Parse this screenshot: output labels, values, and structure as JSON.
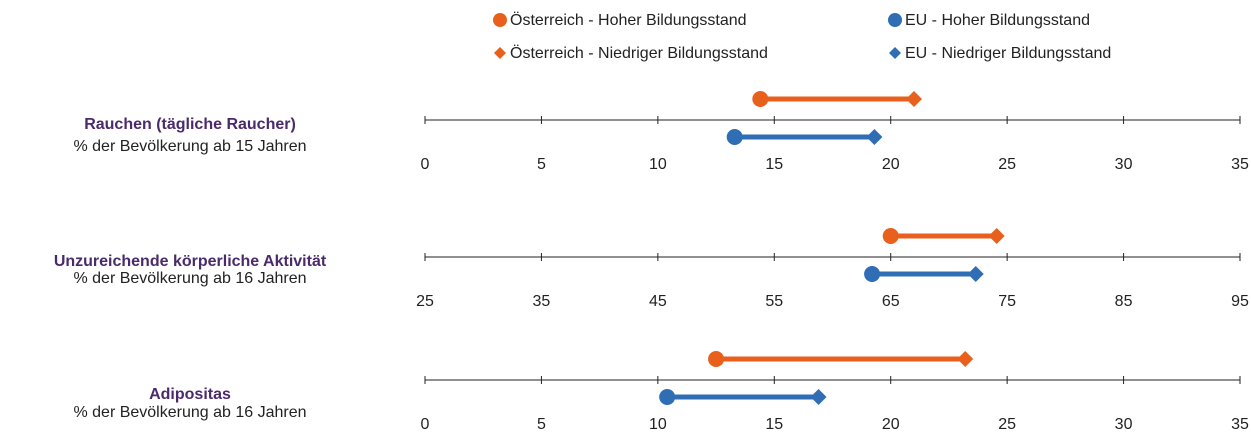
{
  "legend": [
    {
      "name": "Österreich - Hoher Bildungsstand",
      "color": "#e8601c",
      "marker": "circle"
    },
    {
      "name": "Österreich - Niedriger Bildungsstand",
      "color": "#e8601c",
      "marker": "diamond"
    },
    {
      "name": "EU - Hoher Bildungsstand",
      "color": "#2f6db5",
      "marker": "circle"
    },
    {
      "name": "EU - Niedriger Bildungsstand",
      "color": "#2f6db5",
      "marker": "diamond"
    }
  ],
  "chart_data": [
    {
      "type": "dumbbell",
      "title": "Rauchen (tägliche Raucher)",
      "subtitle": "% der Bevölkerung ab 15 Jahren",
      "values": [
        14.4,
        21,
        13.3,
        19.3
      ],
      "xlim": [
        0,
        35
      ],
      "xticks": [
        0,
        5,
        10,
        15,
        20,
        25,
        30,
        35
      ]
    },
    {
      "type": "dumbbell",
      "title": "Unzureichende körperliche Aktivität",
      "subtitle": "% der Bevölkerung ab 16 Jahren",
      "values": [
        65,
        74.1,
        63.4,
        72.3
      ],
      "xlim": [
        25,
        95
      ],
      "xticks": [
        25,
        35,
        45,
        55,
        65,
        75,
        85,
        95
      ]
    },
    {
      "type": "dumbbell",
      "title": "Adipositas",
      "subtitle": "% der Bevölkerung ab 16 Jahren",
      "values": [
        12.5,
        23.2,
        10.4,
        16.9
      ],
      "xlim": [
        0,
        35
      ],
      "xticks": [
        0,
        5,
        10,
        15,
        20,
        25,
        30,
        35
      ]
    }
  ]
}
